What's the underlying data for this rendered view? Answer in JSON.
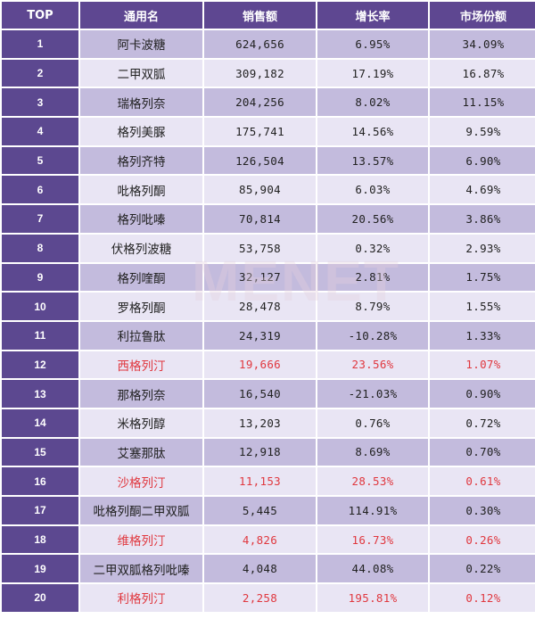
{
  "table": {
    "headers": {
      "top": "TOP",
      "name": "通用名",
      "sales": "销售额",
      "growth": "增长率",
      "share": "市场份额"
    },
    "rows": [
      {
        "top": "1",
        "name": "阿卡波糖",
        "sales": "624,656",
        "growth": "6.95%",
        "share": "34.09%",
        "highlight": false
      },
      {
        "top": "2",
        "name": "二甲双胍",
        "sales": "309,182",
        "growth": "17.19%",
        "share": "16.87%",
        "highlight": false
      },
      {
        "top": "3",
        "name": "瑞格列奈",
        "sales": "204,256",
        "growth": "8.02%",
        "share": "11.15%",
        "highlight": false
      },
      {
        "top": "4",
        "name": "格列美脲",
        "sales": "175,741",
        "growth": "14.56%",
        "share": "9.59%",
        "highlight": false
      },
      {
        "top": "5",
        "name": "格列齐特",
        "sales": "126,504",
        "growth": "13.57%",
        "share": "6.90%",
        "highlight": false
      },
      {
        "top": "6",
        "name": "吡格列酮",
        "sales": "85,904",
        "growth": "6.03%",
        "share": "4.69%",
        "highlight": false
      },
      {
        "top": "7",
        "name": "格列吡嗪",
        "sales": "70,814",
        "growth": "20.56%",
        "share": "3.86%",
        "highlight": false
      },
      {
        "top": "8",
        "name": "伏格列波糖",
        "sales": "53,758",
        "growth": "0.32%",
        "share": "2.93%",
        "highlight": false
      },
      {
        "top": "9",
        "name": "格列喹酮",
        "sales": "32,127",
        "growth": "2.81%",
        "share": "1.75%",
        "highlight": false
      },
      {
        "top": "10",
        "name": "罗格列酮",
        "sales": "28,478",
        "growth": "8.79%",
        "share": "1.55%",
        "highlight": false
      },
      {
        "top": "11",
        "name": "利拉鲁肽",
        "sales": "24,319",
        "growth": "-10.28%",
        "share": "1.33%",
        "highlight": false
      },
      {
        "top": "12",
        "name": "西格列汀",
        "sales": "19,666",
        "growth": "23.56%",
        "share": "1.07%",
        "highlight": true
      },
      {
        "top": "13",
        "name": "那格列奈",
        "sales": "16,540",
        "growth": "-21.03%",
        "share": "0.90%",
        "highlight": false
      },
      {
        "top": "14",
        "name": "米格列醇",
        "sales": "13,203",
        "growth": "0.76%",
        "share": "0.72%",
        "highlight": false
      },
      {
        "top": "15",
        "name": "艾塞那肽",
        "sales": "12,918",
        "growth": "8.69%",
        "share": "0.70%",
        "highlight": false
      },
      {
        "top": "16",
        "name": "沙格列汀",
        "sales": "11,153",
        "growth": "28.53%",
        "share": "0.61%",
        "highlight": true
      },
      {
        "top": "17",
        "name": "吡格列酮二甲双胍",
        "sales": "5,445",
        "growth": "114.91%",
        "share": "0.30%",
        "highlight": false
      },
      {
        "top": "18",
        "name": "维格列汀",
        "sales": "4,826",
        "growth": "16.73%",
        "share": "0.26%",
        "highlight": true
      },
      {
        "top": "19",
        "name": "二甲双胍格列吡嗪",
        "sales": "4,048",
        "growth": "44.08%",
        "share": "0.22%",
        "highlight": false
      },
      {
        "top": "20",
        "name": "利格列汀",
        "sales": "2,258",
        "growth": "195.81%",
        "share": "0.12%",
        "highlight": true
      }
    ]
  },
  "colors": {
    "header_bg": "#5e4791",
    "top_col_bg": "#5c4890",
    "row_dark": "#c3bbdd",
    "row_light": "#e9e5f4",
    "highlight_text": "#e0383f"
  }
}
